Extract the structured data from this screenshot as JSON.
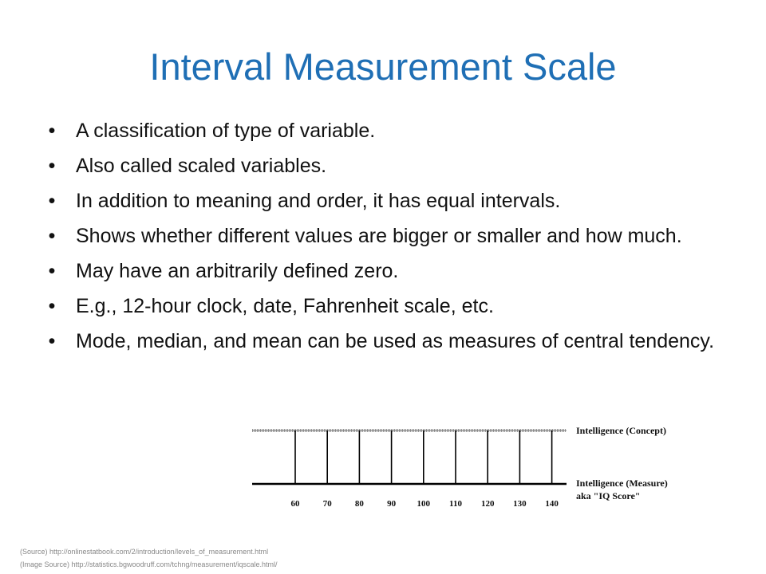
{
  "slide": {
    "title": "Interval Measurement Scale",
    "bullets": [
      "A classification of type of variable.",
      "Also called scaled variables.",
      "In addition to meaning and order, it has equal intervals.",
      "Shows whether different values are bigger or smaller and how much.",
      "May have an arbitrarily defined zero.",
      "E.g., 12-hour clock, date, Fahrenheit scale, etc.",
      "Mode, median, and mean can be used as measures of central tendency."
    ],
    "bullet_symbol": "•"
  },
  "diagram": {
    "concept_label": "Intelligence (Concept)",
    "measure_label_1": "Intelligence (Measure)",
    "measure_label_2": "aka \"IQ Score\"",
    "ticks": [
      "60",
      "70",
      "80",
      "90",
      "100",
      "110",
      "120",
      "130",
      "140"
    ]
  },
  "sources": {
    "source": "(Source) http://onlinestatbook.com/2/introduction/levels_of_measurement.html",
    "image_source": "(Image Source) http://statistics.bgwoodruff.com/tchng/measurement/iqscale.html/"
  }
}
